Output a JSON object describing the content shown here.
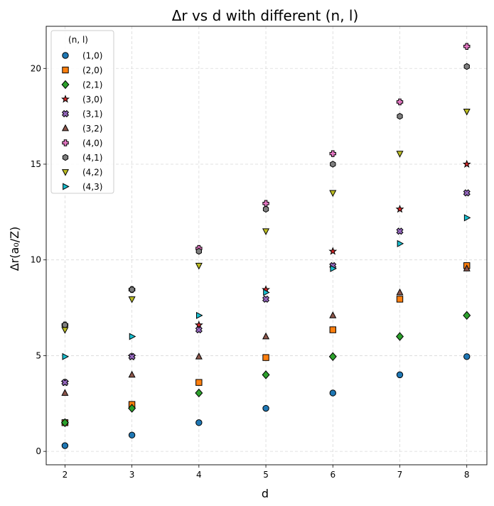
{
  "chart_data": {
    "type": "scatter",
    "title": "Δr vs d with different (n, l)",
    "xlabel": "d",
    "ylabel": "Δr(a₀/Z)",
    "x": [
      2,
      3,
      4,
      5,
      6,
      7,
      8
    ],
    "xticks": [
      "2",
      "3",
      "4",
      "5",
      "6",
      "7",
      "8"
    ],
    "yticks": [
      "0",
      "5",
      "10",
      "15",
      "20"
    ],
    "xlim": [
      1.72,
      8.3
    ],
    "ylim": [
      -0.7,
      22.2
    ],
    "grid": true,
    "legend_title": "(n, l)",
    "legend_position": "top-left",
    "series": [
      {
        "name": "(1,0)",
        "marker": "circle",
        "color": "#1f77b4",
        "values": [
          0.3,
          0.85,
          1.5,
          2.25,
          3.05,
          4.0,
          4.95
        ]
      },
      {
        "name": "(2,0)",
        "marker": "square",
        "color": "#ff7f0e",
        "values": [
          1.5,
          2.45,
          3.6,
          4.9,
          6.35,
          7.95,
          9.7
        ]
      },
      {
        "name": "(2,1)",
        "marker": "diamond",
        "color": "#2ca02c",
        "values": [
          1.5,
          2.25,
          3.05,
          4.0,
          4.95,
          6.0,
          7.1
        ]
      },
      {
        "name": "(3,0)",
        "marker": "star",
        "color": "#d62728",
        "values": [
          3.6,
          4.95,
          6.6,
          8.45,
          10.45,
          12.65,
          15.0
        ]
      },
      {
        "name": "(3,1)",
        "marker": "x",
        "color": "#9467bd",
        "values": [
          3.6,
          4.95,
          6.35,
          7.95,
          9.7,
          11.5,
          13.5
        ]
      },
      {
        "name": "(3,2)",
        "marker": "triangle-up",
        "color": "#8c564b",
        "values": [
          3.05,
          4.0,
          4.95,
          6.0,
          7.1,
          8.3,
          9.55
        ]
      },
      {
        "name": "(4,0)",
        "marker": "plus",
        "color": "#e377c2",
        "values": [
          6.6,
          8.45,
          10.6,
          12.95,
          15.55,
          18.25,
          21.15
        ]
      },
      {
        "name": "(4,1)",
        "marker": "hexagon",
        "color": "#7f7f7f",
        "values": [
          6.6,
          8.45,
          10.45,
          12.65,
          15.0,
          17.5,
          20.1
        ]
      },
      {
        "name": "(4,2)",
        "marker": "triangle-down",
        "color": "#bcbd22",
        "values": [
          6.35,
          7.95,
          9.7,
          11.5,
          13.5,
          15.55,
          17.75
        ]
      },
      {
        "name": "(4,3)",
        "marker": "triangle-right",
        "color": "#17becf",
        "values": [
          4.95,
          6.0,
          7.1,
          8.3,
          9.55,
          10.85,
          12.2
        ]
      }
    ]
  }
}
